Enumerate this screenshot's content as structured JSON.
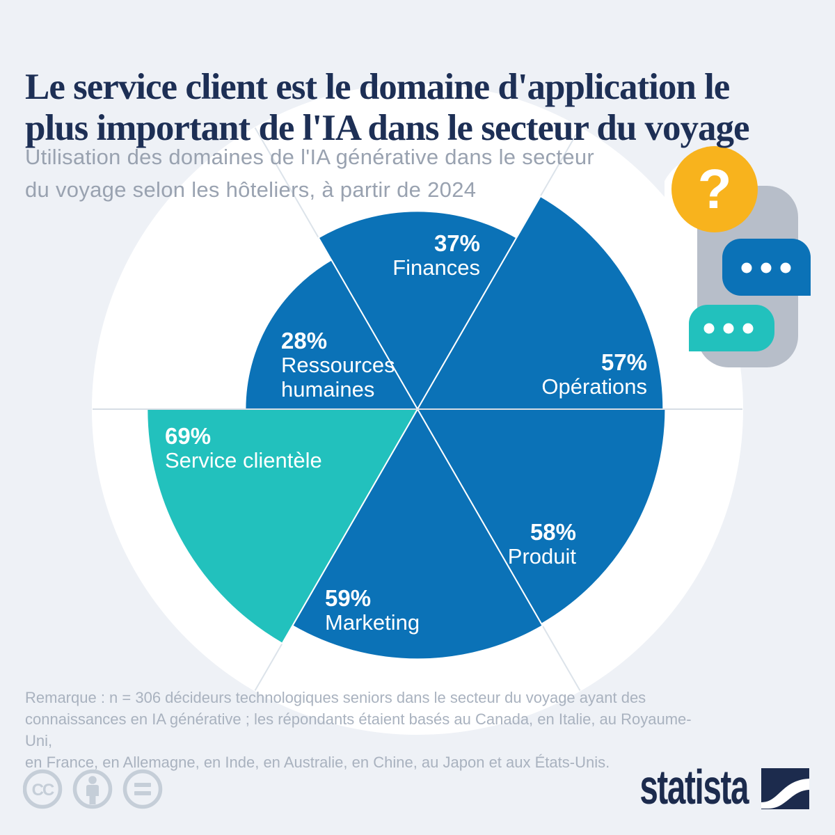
{
  "page": {
    "title": "Le service client est le domaine d'application le\nplus important de l'IA dans le secteur du voyage",
    "subtitle": "Utilisation des domaines de l'IA générative dans le secteur\ndu voyage selon les hôteliers, à partir de 2024",
    "note": "Remarque : n = 306 décideurs technologiques seniors dans le secteur du voyage ayant des\nconnaissances en IA générative ; les répondants étaient basés au Canada, en Italie, au Royaume-Uni,\nen France, en Allemagne, en Inde, en Australie, en Chine, au Japon et aux États-Unis."
  },
  "chart_data": {
    "type": "pie",
    "variant": "polar-area-rose",
    "title": "Le service client est le domaine d'application le plus important de l'IA dans le secteur du voyage",
    "subtitle": "Utilisation des domaines de l'IA générative dans le secteur du voyage selon les hôteliers, à partir de 2024",
    "unit": "%",
    "scale_max": 100,
    "start": "top",
    "direction": "clockwise",
    "radius_scaling": "sqrt-of-value",
    "segments": [
      {
        "label": "Finances",
        "value": 37,
        "highlight": false
      },
      {
        "label": "Opérations",
        "value": 57,
        "highlight": false
      },
      {
        "label": "Produit",
        "value": 58,
        "highlight": false
      },
      {
        "label": "Marketing",
        "value": 59,
        "highlight": false
      },
      {
        "label": "Service clientèle",
        "value": 69,
        "highlight": true
      },
      {
        "label": "Ressources humaines",
        "value": 28,
        "highlight": false
      }
    ]
  },
  "colors": {
    "blue": "#0b72b7",
    "teal": "#22c1bd",
    "yellow": "#f8b31d",
    "illustration_gray": "#b7bec9",
    "navy": "#1c2b4d",
    "title_navy": "#1d2f55",
    "subtitle_gray": "#99a2b0",
    "note_gray": "#a9b2bf",
    "icon_gray": "#c5ced8",
    "background": "#eef1f6",
    "white": "#ffffff",
    "spoke_light": "#dce3ea",
    "axis_gray": "#c6cfda"
  },
  "icons": {
    "question": "?",
    "cc": "CC"
  },
  "footer": {
    "brand": "statista"
  }
}
